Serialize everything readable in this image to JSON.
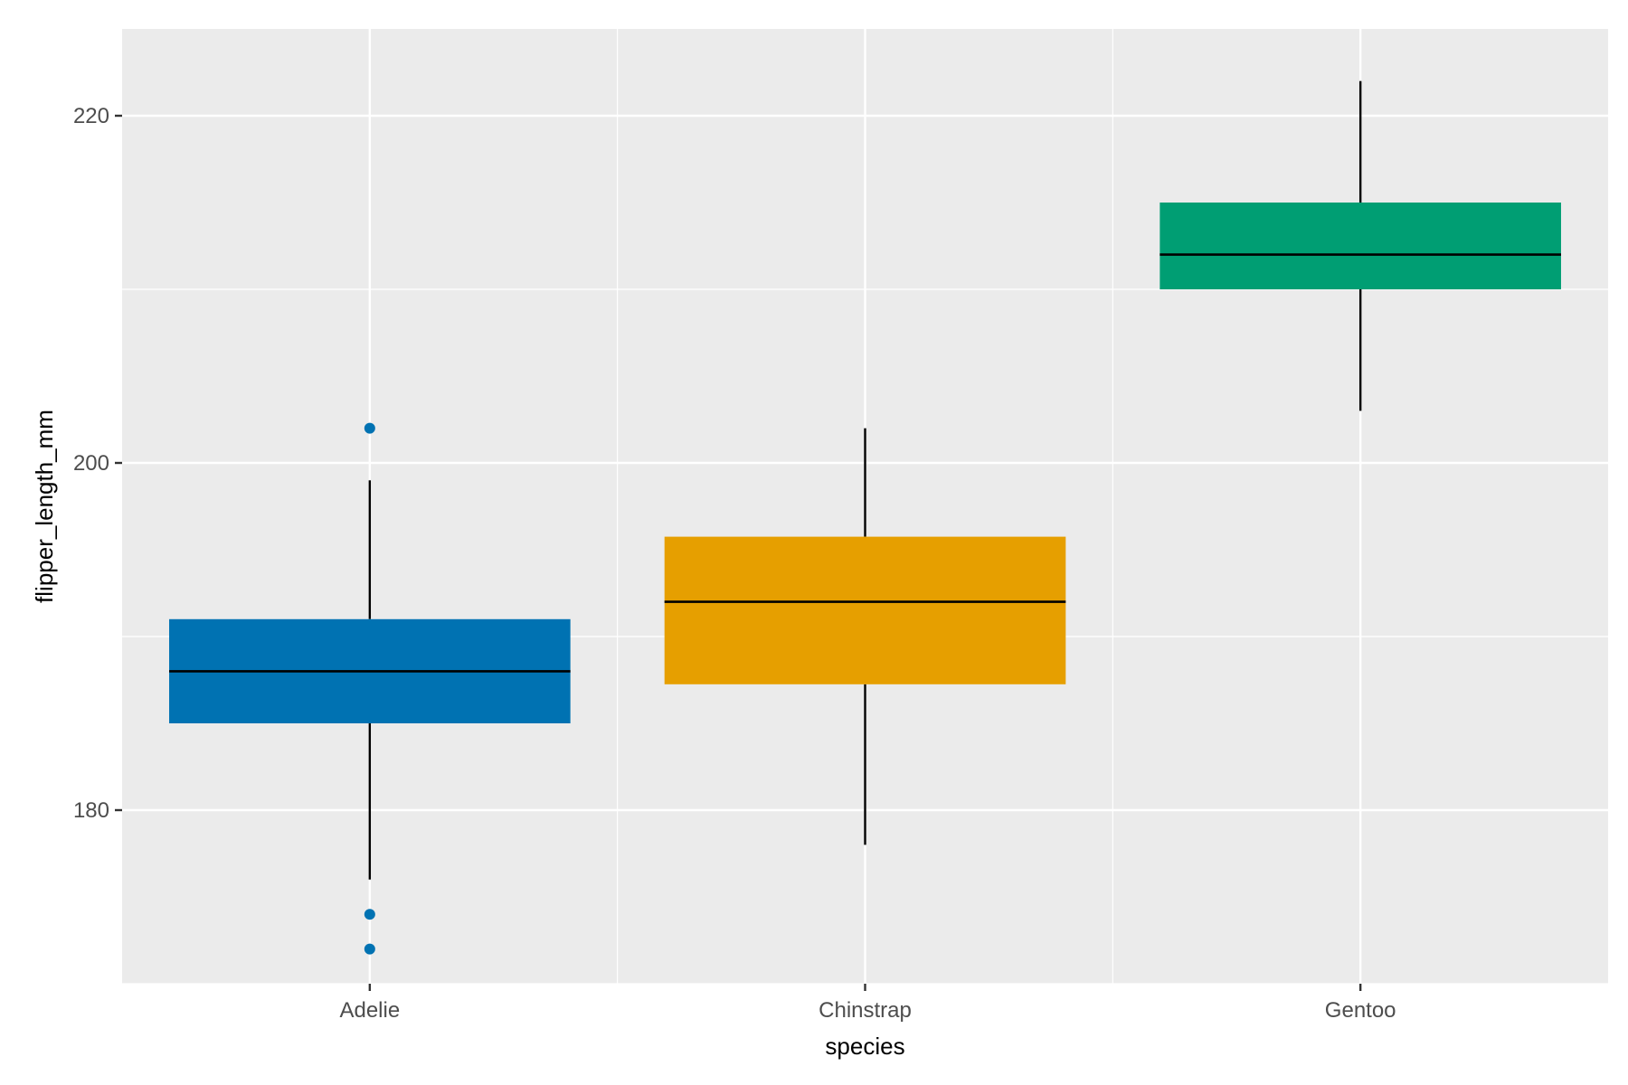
{
  "chart_data": {
    "type": "box",
    "title": "",
    "xlabel": "species",
    "ylabel": "flipper_length_mm",
    "categories": [
      "Adelie",
      "Chinstrap",
      "Gentoo"
    ],
    "ylim": [
      170,
      225
    ],
    "y_ticks": [
      180,
      200,
      220
    ],
    "grid": true,
    "legend": "none",
    "panel_color": "#ebebeb",
    "grid_color": "#ffffff",
    "series": [
      {
        "category": "Adelie",
        "color": "#0072b2",
        "whisker_low": 176,
        "q1": 185,
        "median": 188,
        "q3": 191,
        "whisker_high": 199,
        "outliers": [
          202,
          174,
          172
        ]
      },
      {
        "category": "Chinstrap",
        "color": "#e69f00",
        "whisker_low": 178,
        "q1": 187.25,
        "median": 192,
        "q3": 195.75,
        "whisker_high": 202,
        "outliers": []
      },
      {
        "category": "Gentoo",
        "color": "#009e73",
        "whisker_low": 203,
        "q1": 210,
        "median": 212,
        "q3": 215,
        "whisker_high": 222,
        "outliers": []
      }
    ]
  }
}
